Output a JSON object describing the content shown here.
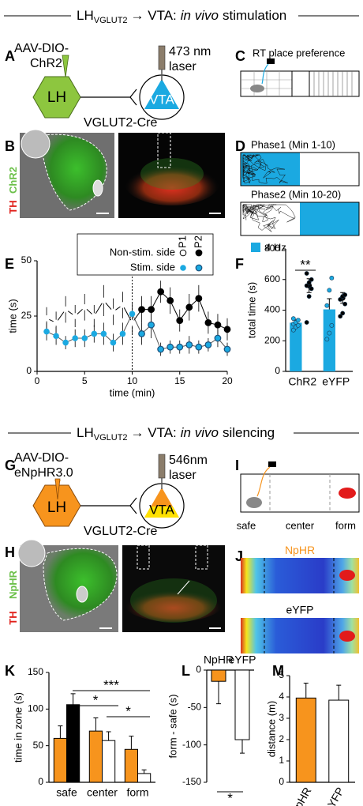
{
  "figure": {
    "title1": {
      "lh": "LH",
      "sub": "VGLUT2",
      "rest": "→ VTA:",
      "em": "in vivo",
      "end": "stimulation"
    },
    "title2": {
      "lh": "LH",
      "sub": "VGLUT2",
      "rest": "→ VTA:",
      "em": "in vivo",
      "end": "silencing"
    },
    "A": {
      "letter": "A",
      "virus1": "AAV-DIO-",
      "virus2": "ChR2",
      "laser1": "473 nm",
      "laser2": "laser",
      "source": "LH",
      "target": "VTA",
      "mouse": "VGLUT2-Cre"
    },
    "B": {
      "letter": "B",
      "stain1": "ChR2",
      "stain2": "TH"
    },
    "C": {
      "letter": "C",
      "label": "RT place preference"
    },
    "D": {
      "letter": "D",
      "phase1": "Phase1 (Min 1-10)",
      "phase2": "Phase2 (Min 10-20)",
      "legend": "4 Hz"
    },
    "G": {
      "letter": "G",
      "virus1": "AAV-DIO-",
      "virus2": "eNpHR3.0",
      "laser1": "546nm",
      "laser2": "laser",
      "source": "LH",
      "target": "VTA",
      "mouse": "VGLUT2-Cre"
    },
    "H": {
      "letter": "H",
      "stain1": "NpHR",
      "stain2": "TH"
    },
    "I": {
      "letter": "I",
      "zones": [
        "safe",
        "center",
        "form"
      ]
    },
    "J": {
      "letter": "J",
      "group1": "NpHR",
      "group2": "eYFP"
    }
  },
  "chart_data": [
    {
      "type": "line",
      "panel": "E",
      "xlabel": "time (min)",
      "ylabel": "time (s)",
      "x": [
        1,
        2,
        3,
        4,
        5,
        6,
        7,
        8,
        9,
        10,
        11,
        12,
        13,
        14,
        15,
        16,
        17,
        18,
        19,
        20
      ],
      "xlim": [
        0,
        20
      ],
      "xticks": [
        0,
        5,
        10,
        15,
        20
      ],
      "ylim": [
        0,
        50
      ],
      "yticks": [
        0,
        25,
        50
      ],
      "vline": 10,
      "phases": [
        "P1",
        "P2"
      ],
      "series": [
        {
          "name": "Non-stim. side",
          "color": "#000000",
          "values": [
            24,
            22,
            28,
            25,
            29,
            25,
            32,
            27,
            30,
            22,
            28,
            28,
            36,
            32,
            23,
            29,
            33,
            22,
            21,
            19
          ],
          "errors": [
            5,
            5,
            6,
            5,
            6,
            5,
            7,
            6,
            6,
            5,
            6,
            6,
            5,
            6,
            5,
            6,
            6,
            5,
            5,
            5
          ]
        },
        {
          "name": "Stim. side",
          "color": "#1ba9e1",
          "values": [
            18,
            16,
            13,
            15,
            15,
            17,
            17,
            13,
            17,
            26,
            17,
            21,
            10,
            11,
            11,
            12,
            11,
            12,
            15,
            10
          ],
          "errors": [
            4,
            4,
            3,
            4,
            4,
            4,
            5,
            4,
            5,
            5,
            5,
            6,
            3,
            3,
            3,
            4,
            3,
            3,
            4,
            3
          ]
        }
      ]
    },
    {
      "type": "bar",
      "panel": "F",
      "ylabel": "total time (s)",
      "categories": [
        "ChR2",
        "eYFP"
      ],
      "ylim": [
        0,
        800
      ],
      "yticks": [
        0,
        200,
        400,
        600,
        800
      ],
      "annotations": [
        {
          "text": "**"
        }
      ],
      "series": [
        {
          "color": "#1ba9e1",
          "values": [
            318,
            405
          ],
          "errors": [
            18,
            70
          ],
          "points": [
            [
              270,
              290,
              300,
              310,
              320,
              335,
              345
            ],
            [
              210,
              250,
              300,
              430,
              530,
              610
            ]
          ]
        },
        {
          "color": "#000000",
          "marker": "point",
          "values": [
            560,
            480
          ],
          "errors": [
            45,
            35
          ],
          "points": [
            [
              320,
              490,
              540,
              560,
              580,
              600,
              640
            ],
            [
              360,
              380,
              440,
              470,
              490,
              500
            ]
          ]
        }
      ]
    },
    {
      "type": "bar",
      "panel": "K",
      "ylabel": "time in zone (s)",
      "categories": [
        "safe",
        "center",
        "form"
      ],
      "ylim": [
        0,
        150
      ],
      "yticks": [
        0,
        50,
        100,
        150
      ],
      "annotations": [
        {
          "text": "***"
        },
        {
          "text": "*"
        },
        {
          "text": "*"
        }
      ],
      "series": [
        {
          "color": "#f7941d",
          "values": [
            60,
            70,
            45
          ],
          "errors": [
            17,
            18,
            18
          ]
        },
        {
          "colors": [
            "#000000",
            "#ffffff",
            "#ffffff"
          ],
          "values": [
            106,
            57,
            12
          ],
          "errors": [
            15,
            12,
            5
          ]
        }
      ]
    },
    {
      "type": "bar",
      "panel": "L",
      "ylabel": "form - safe (s)",
      "categories": [
        "NpHR",
        "eYFP"
      ],
      "xtick_position": "top",
      "ylim": [
        -150,
        0
      ],
      "yticks": [
        0,
        -50,
        -100,
        -150
      ],
      "annotations": [
        {
          "text": "*"
        }
      ],
      "series": [
        {
          "colors": [
            "#f7941d",
            "#ffffff"
          ],
          "values": [
            -15,
            -93
          ],
          "errors": [
            30,
            18
          ]
        }
      ]
    },
    {
      "type": "bar",
      "panel": "M",
      "ylabel": "distance (m)",
      "categories": [
        "NpHR",
        "eYFP"
      ],
      "xtick_rotation": -60,
      "ylim": [
        0,
        5
      ],
      "yticks": [
        0,
        1,
        2,
        3,
        4,
        5
      ],
      "series": [
        {
          "colors": [
            "#f7941d",
            "#ffffff"
          ],
          "values": [
            3.95,
            3.85
          ],
          "errors": [
            0.7,
            0.7
          ]
        }
      ]
    }
  ]
}
